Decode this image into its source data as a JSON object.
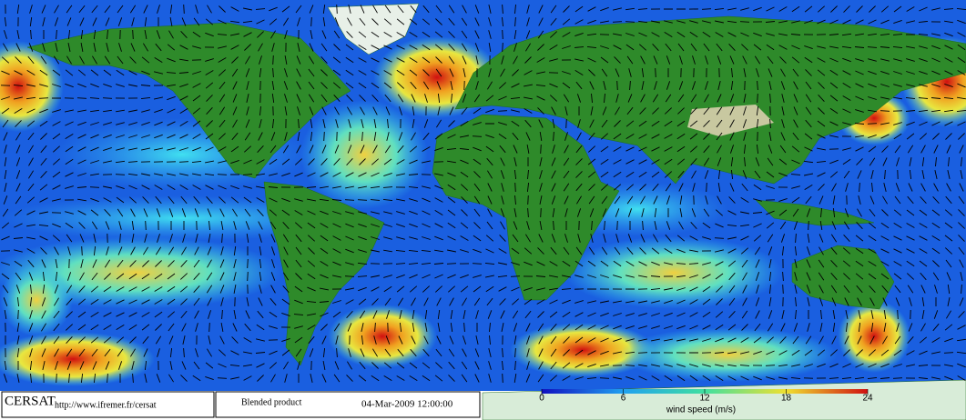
{
  "footer": {
    "logo": "CERSAT",
    "url": "http://www.ifremer.fr/cersat",
    "product": "Blended product",
    "date": "04-Mar-2009 12:00:00"
  },
  "colorbar": {
    "label": "wind speed (m/s)",
    "lim": [
      0,
      24
    ],
    "ticks": [
      0,
      6,
      12,
      18,
      24
    ]
  }
}
